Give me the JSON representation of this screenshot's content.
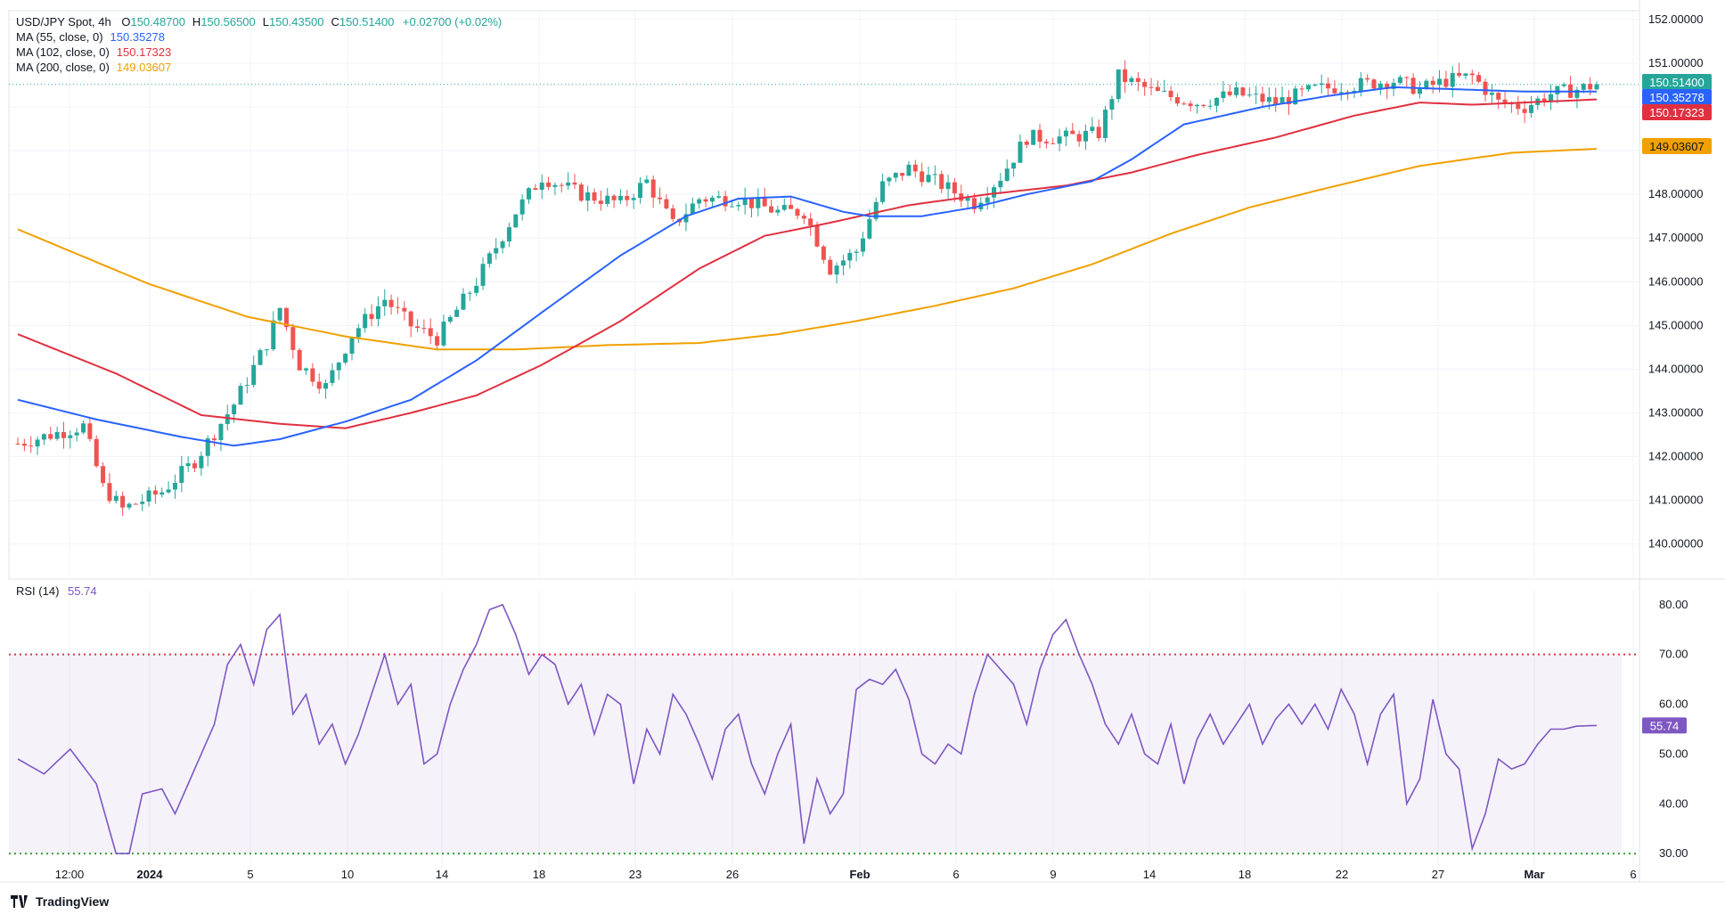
{
  "header": {
    "symbol": "USD/JPY Spot, 4h",
    "ohlc": [
      {
        "k": "O",
        "v": "150.48700"
      },
      {
        "k": "H",
        "v": "150.56500"
      },
      {
        "k": "L",
        "v": "150.43500"
      },
      {
        "k": "C",
        "v": "150.51400"
      }
    ],
    "change": "+0.02700 (+0.02%)"
  },
  "indicators": [
    {
      "label": "MA (55, close, 0)",
      "value": "150.35278",
      "color": "#2962ff"
    },
    {
      "label": "MA (102, close, 0)",
      "value": "150.17323",
      "color": "#e03040"
    },
    {
      "label": "MA (200, close, 0)",
      "value": "149.03607",
      "color": "#f0a000"
    }
  ],
  "rsi": {
    "label": "RSI (14)",
    "value": "55.74",
    "color": "#7e57c2"
  },
  "brand": "TradingView",
  "colors": {
    "up": "#26a69a",
    "down": "#ef5350",
    "grid": "#f0f3fa",
    "axis_text": "#131722"
  },
  "chart_data": [
    {
      "type": "candlestick",
      "title": "USD/JPY Spot, 4h",
      "x_ticks": [
        "12:00",
        "2024",
        "5",
        "10",
        "14",
        "18",
        "23",
        "26",
        "Feb",
        "6",
        "9",
        "14",
        "18",
        "22",
        "27",
        "Mar",
        "6"
      ],
      "y_ticks": [
        "152.00000",
        "151.00000",
        "150.00000",
        "149.00000",
        "148.00000",
        "147.00000",
        "146.00000",
        "145.00000",
        "144.00000",
        "143.00000",
        "142.00000",
        "141.00000",
        "140.00000"
      ],
      "ylim": [
        139.2,
        152.2
      ],
      "last_price": "150.51400",
      "price_labels": [
        {
          "value": "150.51400",
          "color": "#26a69a"
        },
        {
          "value": "150.35278",
          "color": "#2962ff"
        },
        {
          "value": "150.17323",
          "color": "#e03040"
        },
        {
          "value": "149.03607",
          "color": "#f0a000"
        }
      ],
      "series_close_anchors": [
        [
          0,
          142.3
        ],
        [
          10,
          142.7
        ],
        [
          13,
          141.3
        ],
        [
          16,
          140.8
        ],
        [
          22,
          141.2
        ],
        [
          27,
          141.9
        ],
        [
          33,
          143.2
        ],
        [
          38,
          144.6
        ],
        [
          40,
          145.4
        ],
        [
          43,
          144.1
        ],
        [
          47,
          143.6
        ],
        [
          51,
          144.8
        ],
        [
          56,
          145.6
        ],
        [
          60,
          145.0
        ],
        [
          64,
          144.7
        ],
        [
          70,
          146.0
        ],
        [
          76,
          147.6
        ],
        [
          80,
          148.4
        ],
        [
          86,
          148.0
        ],
        [
          92,
          147.8
        ],
        [
          96,
          148.3
        ],
        [
          100,
          147.3
        ],
        [
          104,
          147.9
        ],
        [
          110,
          147.9
        ],
        [
          116,
          147.6
        ],
        [
          120,
          147.6
        ],
        [
          124,
          146.3
        ],
        [
          128,
          146.7
        ],
        [
          132,
          148.2
        ],
        [
          136,
          148.6
        ],
        [
          140,
          148.3
        ],
        [
          146,
          147.8
        ],
        [
          150,
          148.4
        ],
        [
          154,
          149.3
        ],
        [
          160,
          149.3
        ],
        [
          165,
          149.4
        ],
        [
          168,
          150.7
        ],
        [
          174,
          150.3
        ],
        [
          180,
          150.1
        ],
        [
          186,
          150.3
        ],
        [
          192,
          150.1
        ],
        [
          198,
          150.4
        ],
        [
          204,
          150.5
        ],
        [
          210,
          150.6
        ],
        [
          214,
          150.4
        ],
        [
          218,
          150.6
        ],
        [
          222,
          150.7
        ],
        [
          226,
          150.1
        ],
        [
          230,
          150.0
        ],
        [
          234,
          150.3
        ],
        [
          238,
          150.4
        ],
        [
          241,
          150.51
        ]
      ],
      "ma55_anchors": [
        [
          0,
          143.3
        ],
        [
          12,
          142.85
        ],
        [
          25,
          142.45
        ],
        [
          33,
          142.25
        ],
        [
          40,
          142.4
        ],
        [
          50,
          142.8
        ],
        [
          60,
          143.3
        ],
        [
          70,
          144.2
        ],
        [
          80,
          145.3
        ],
        [
          92,
          146.6
        ],
        [
          102,
          147.5
        ],
        [
          110,
          147.9
        ],
        [
          118,
          147.95
        ],
        [
          126,
          147.6
        ],
        [
          130,
          147.5
        ],
        [
          138,
          147.5
        ],
        [
          146,
          147.7
        ],
        [
          154,
          148.0
        ],
        [
          164,
          148.3
        ],
        [
          170,
          148.8
        ],
        [
          178,
          149.6
        ],
        [
          190,
          150.0
        ],
        [
          200,
          150.25
        ],
        [
          210,
          150.45
        ],
        [
          220,
          150.4
        ],
        [
          230,
          150.35
        ],
        [
          241,
          150.35
        ]
      ],
      "ma102_anchors": [
        [
          0,
          144.8
        ],
        [
          15,
          143.9
        ],
        [
          28,
          142.95
        ],
        [
          40,
          142.75
        ],
        [
          50,
          142.65
        ],
        [
          60,
          143.0
        ],
        [
          70,
          143.4
        ],
        [
          80,
          144.1
        ],
        [
          92,
          145.1
        ],
        [
          104,
          146.3
        ],
        [
          114,
          147.05
        ],
        [
          124,
          147.35
        ],
        [
          136,
          147.75
        ],
        [
          148,
          148.0
        ],
        [
          160,
          148.2
        ],
        [
          170,
          148.5
        ],
        [
          180,
          148.9
        ],
        [
          192,
          149.3
        ],
        [
          204,
          149.8
        ],
        [
          214,
          150.1
        ],
        [
          222,
          150.05
        ],
        [
          230,
          150.1
        ],
        [
          241,
          150.17
        ]
      ],
      "ma200_anchors": [
        [
          0,
          147.2
        ],
        [
          20,
          145.95
        ],
        [
          35,
          145.2
        ],
        [
          50,
          144.75
        ],
        [
          64,
          144.45
        ],
        [
          76,
          144.45
        ],
        [
          90,
          144.55
        ],
        [
          104,
          144.6
        ],
        [
          116,
          144.8
        ],
        [
          128,
          145.1
        ],
        [
          140,
          145.45
        ],
        [
          152,
          145.85
        ],
        [
          164,
          146.4
        ],
        [
          176,
          147.1
        ],
        [
          188,
          147.7
        ],
        [
          200,
          148.15
        ],
        [
          214,
          148.65
        ],
        [
          228,
          148.95
        ],
        [
          241,
          149.04
        ]
      ]
    },
    {
      "type": "line",
      "title": "RSI (14)",
      "y_ticks": [
        "80.00",
        "70.00",
        "60.00",
        "50.00",
        "40.00",
        "30.00"
      ],
      "ylim": [
        27,
        83
      ],
      "upper_band": 70,
      "lower_band": 30,
      "last_value": "55.74",
      "values_anchors": [
        [
          0,
          49
        ],
        [
          4,
          46
        ],
        [
          8,
          51
        ],
        [
          12,
          44
        ],
        [
          15,
          30
        ],
        [
          17,
          30
        ],
        [
          19,
          42
        ],
        [
          22,
          43
        ],
        [
          24,
          38
        ],
        [
          27,
          47
        ],
        [
          30,
          56
        ],
        [
          32,
          68
        ],
        [
          34,
          72
        ],
        [
          36,
          64
        ],
        [
          38,
          75
        ],
        [
          40,
          78
        ],
        [
          42,
          58
        ],
        [
          44,
          62
        ],
        [
          46,
          52
        ],
        [
          48,
          56
        ],
        [
          50,
          48
        ],
        [
          52,
          54
        ],
        [
          54,
          62
        ],
        [
          56,
          70
        ],
        [
          58,
          60
        ],
        [
          60,
          64
        ],
        [
          62,
          48
        ],
        [
          64,
          50
        ],
        [
          66,
          60
        ],
        [
          68,
          67
        ],
        [
          70,
          72
        ],
        [
          72,
          79
        ],
        [
          74,
          80
        ],
        [
          76,
          74
        ],
        [
          78,
          66
        ],
        [
          80,
          70
        ],
        [
          82,
          68
        ],
        [
          84,
          60
        ],
        [
          86,
          64
        ],
        [
          88,
          54
        ],
        [
          90,
          62
        ],
        [
          92,
          60
        ],
        [
          94,
          44
        ],
        [
          96,
          55
        ],
        [
          98,
          50
        ],
        [
          100,
          62
        ],
        [
          102,
          58
        ],
        [
          104,
          52
        ],
        [
          106,
          45
        ],
        [
          108,
          55
        ],
        [
          110,
          58
        ],
        [
          112,
          48
        ],
        [
          114,
          42
        ],
        [
          116,
          50
        ],
        [
          118,
          56
        ],
        [
          120,
          32
        ],
        [
          122,
          45
        ],
        [
          124,
          38
        ],
        [
          126,
          42
        ],
        [
          128,
          63
        ],
        [
          130,
          65
        ],
        [
          132,
          64
        ],
        [
          134,
          67
        ],
        [
          136,
          61
        ],
        [
          138,
          50
        ],
        [
          140,
          48
        ],
        [
          142,
          52
        ],
        [
          144,
          50
        ],
        [
          146,
          62
        ],
        [
          148,
          70
        ],
        [
          150,
          67
        ],
        [
          152,
          64
        ],
        [
          154,
          56
        ],
        [
          156,
          67
        ],
        [
          158,
          74
        ],
        [
          160,
          77
        ],
        [
          162,
          70
        ],
        [
          164,
          64
        ],
        [
          166,
          56
        ],
        [
          168,
          52
        ],
        [
          170,
          58
        ],
        [
          172,
          50
        ],
        [
          174,
          48
        ],
        [
          176,
          56
        ],
        [
          178,
          44
        ],
        [
          180,
          53
        ],
        [
          182,
          58
        ],
        [
          184,
          52
        ],
        [
          186,
          56
        ],
        [
          188,
          60
        ],
        [
          190,
          52
        ],
        [
          192,
          57
        ],
        [
          194,
          60
        ],
        [
          196,
          56
        ],
        [
          198,
          60
        ],
        [
          200,
          55
        ],
        [
          202,
          63
        ],
        [
          204,
          58
        ],
        [
          206,
          48
        ],
        [
          208,
          58
        ],
        [
          210,
          62
        ],
        [
          212,
          40
        ],
        [
          214,
          45
        ],
        [
          216,
          61
        ],
        [
          218,
          50
        ],
        [
          220,
          47
        ],
        [
          222,
          31
        ],
        [
          224,
          38
        ],
        [
          226,
          49
        ],
        [
          228,
          47
        ],
        [
          230,
          48
        ],
        [
          232,
          52
        ],
        [
          234,
          55
        ],
        [
          236,
          55
        ],
        [
          238,
          55.6
        ],
        [
          241,
          55.74
        ]
      ]
    }
  ]
}
